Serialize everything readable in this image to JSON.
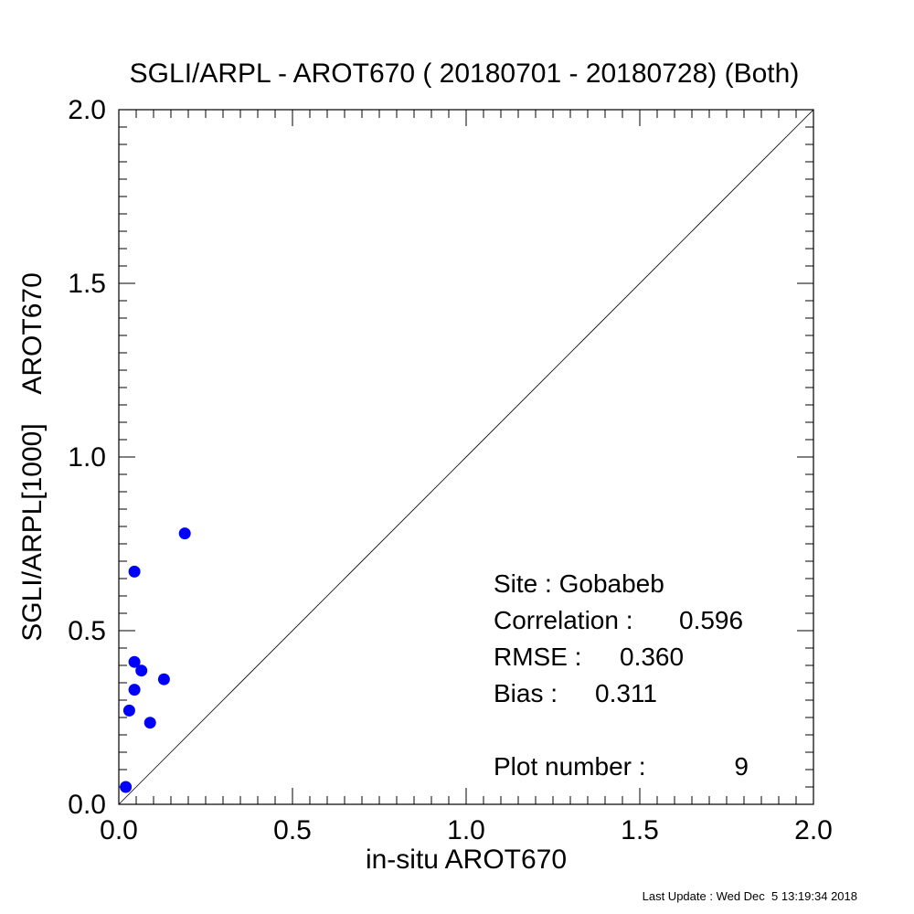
{
  "chart_data": {
    "type": "scatter",
    "title": "SGLI/ARPL - AROT670 ( 20180701 - 20180728) (Both)",
    "xlabel": "in-situ AROT670",
    "ylabel": "SGLI/ARPL[1000]    AROT670",
    "xlim": [
      0.0,
      2.0
    ],
    "ylim": [
      0.0,
      2.0
    ],
    "x_ticks": [
      "0.0",
      "0.5",
      "1.0",
      "1.5",
      "2.0"
    ],
    "y_ticks": [
      "0.0",
      "0.5",
      "1.0",
      "1.5",
      "2.0"
    ],
    "grid": false,
    "reference_line": "1:1",
    "marker_color": "#0000ff",
    "points": [
      {
        "x": 0.02,
        "y": 0.05
      },
      {
        "x": 0.03,
        "y": 0.27
      },
      {
        "x": 0.045,
        "y": 0.33
      },
      {
        "x": 0.045,
        "y": 0.41
      },
      {
        "x": 0.045,
        "y": 0.67
      },
      {
        "x": 0.065,
        "y": 0.385
      },
      {
        "x": 0.09,
        "y": 0.235
      },
      {
        "x": 0.13,
        "y": 0.36
      },
      {
        "x": 0.19,
        "y": 0.78
      }
    ]
  },
  "stats": {
    "site": "Site : Gobabeb",
    "correlation_label": "Correlation :",
    "correlation_value": "0.596",
    "rmse_label": "RMSE :",
    "rmse_value": "0.360",
    "bias_label": "Bias :",
    "bias_value": "0.311",
    "plot_number_label": "Plot number :",
    "plot_number_value": "9"
  },
  "footer": "Last Update : Wed Dec  5 13:19:34 2018"
}
